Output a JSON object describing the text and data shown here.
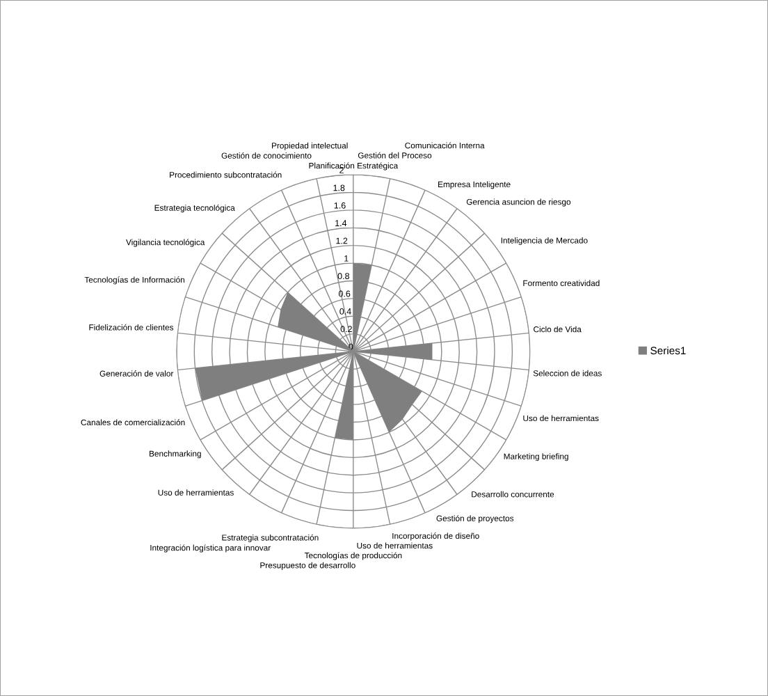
{
  "chart_data": {
    "type": "radar",
    "categories": [
      "Planificación Estratégica",
      "Gestión del Proceso",
      "Comunicación Interna",
      "Empresa Inteligente",
      "Gerencia asuncion de riesgo",
      "Inteligencia de Mercado",
      "Formento creatividad",
      "Ciclo de Vida",
      "Seleccion de ideas",
      "Uso de herramientas",
      "Marketing briefing",
      "Desarrollo concurrente",
      "Gestión de proyectos",
      "Incorporación de diseño",
      "Uso de herramientas",
      "Tecnologías de producción",
      "Presupuesto de desarrollo",
      "Estrategia subcontratación",
      "Integración logística para innovar",
      "Uso de herramientas",
      "Benchmarking",
      "Canales de comercialización",
      "Generación de valor",
      "Fidelización de clientes",
      "Tecnologías de Información",
      "Vigilancia tecnológica",
      "Estrategia tecnológica",
      "Procedimiento subcontratación",
      "Gestión de conocimiento",
      "Propiedad intelectual"
    ],
    "series": [
      {
        "name": "Series1",
        "color": "#7f7f7f",
        "values": [
          1,
          1,
          0,
          0,
          0,
          0,
          0,
          0.9,
          0.9,
          0,
          0.9,
          0.9,
          0.95,
          1,
          0,
          1,
          1,
          0,
          0,
          0,
          0,
          1.8,
          1.8,
          0,
          0.9,
          0.95,
          1,
          0,
          0,
          0
        ]
      }
    ],
    "ylim": [
      0,
      2
    ],
    "yticks": [
      0,
      0.2,
      0.4,
      0.6,
      0.8,
      1,
      1.2,
      1.4,
      1.6,
      1.8,
      2
    ],
    "grid": true,
    "legend": "right"
  }
}
